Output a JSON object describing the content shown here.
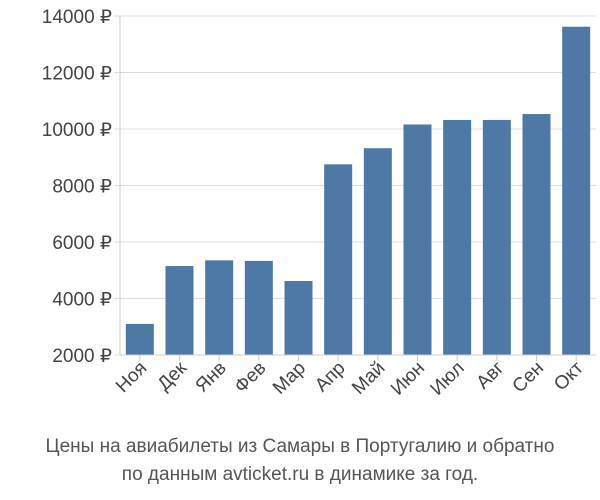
{
  "chart_data": {
    "type": "bar",
    "categories": [
      "Ноя",
      "Дек",
      "Янв",
      "Фев",
      "Мар",
      "Апр",
      "Май",
      "Июн",
      "Июл",
      "Авг",
      "Сен",
      "Окт"
    ],
    "values": [
      3100,
      5150,
      5350,
      5330,
      4620,
      8750,
      9320,
      10160,
      10320,
      10320,
      10530,
      13620
    ],
    "ylim": [
      2000,
      14000
    ],
    "yticks": [
      2000,
      4000,
      6000,
      8000,
      10000,
      12000,
      14000
    ],
    "ytick_labels": [
      "2000 ₽",
      "4000 ₽",
      "6000 ₽",
      "8000 ₽",
      "10000 ₽",
      "12000 ₽",
      "14000 ₽"
    ],
    "bar_color": "#4e79a7",
    "grid": true
  },
  "caption": {
    "line1": "Цены на авиабилеты из Самары в Португалию и обратно",
    "line2": "по данным avticket.ru в динамике за год."
  }
}
